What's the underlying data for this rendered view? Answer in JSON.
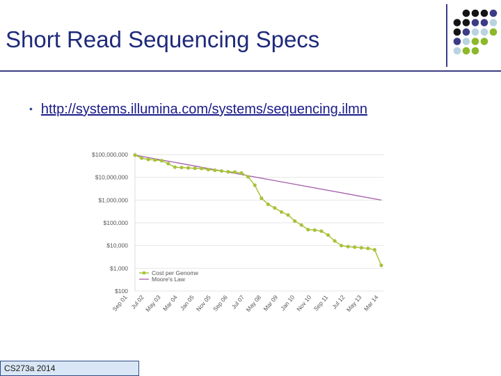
{
  "slide": {
    "title": "Short Read Sequencing Specs",
    "bullet_link": "http://systems.illumina.com/systems/sequencing.ilmn",
    "footer": "CS273a 2014"
  },
  "colors": {
    "title": "#1f2a7a",
    "rule": "#3b3b86",
    "dot_black": "#141414",
    "dot_navy": "#3b3b86",
    "dot_lightblue": "#b9d3e0",
    "dot_green": "#8cb82a",
    "cost_series": "#a8c23a",
    "moore_series": "#a35ca8"
  },
  "chart_data": {
    "type": "line",
    "yscale": "log",
    "yticks": [
      "$100,000,000",
      "$10,000,000",
      "$1,000,000",
      "$100,000",
      "$10,000",
      "$1,000",
      "$100"
    ],
    "ylim": [
      100,
      100000000
    ],
    "xticks": [
      "Sep 01",
      "Jul 02",
      "May 03",
      "Mar 04",
      "Jan 05",
      "Nov 05",
      "Sep 06",
      "Jul 07",
      "May 08",
      "Mar 09",
      "Jan 10",
      "Nov 10",
      "Sep 11",
      "Jul 12",
      "May 13",
      "Mar 14"
    ],
    "legend": "bottom-left",
    "series": [
      {
        "name": "Cost per Genome",
        "color": "#a8c23a",
        "points": [
          [
            0,
            95000000
          ],
          [
            1,
            70000000
          ],
          [
            2,
            61000000
          ],
          [
            3,
            58000000
          ],
          [
            4,
            54000000
          ],
          [
            5,
            40000000
          ],
          [
            6,
            28000000
          ],
          [
            7,
            27000000
          ],
          [
            8,
            26000000
          ],
          [
            9,
            25000000
          ],
          [
            10,
            24500000
          ],
          [
            11,
            22000000
          ],
          [
            12,
            20500000
          ],
          [
            13,
            19000000
          ],
          [
            14,
            17500000
          ],
          [
            15,
            17000000
          ],
          [
            16,
            15500000
          ],
          [
            17,
            10500000
          ],
          [
            18,
            4500000
          ],
          [
            19,
            1200000
          ],
          [
            20,
            650000
          ],
          [
            21,
            450000
          ],
          [
            22,
            300000
          ],
          [
            23,
            220000
          ],
          [
            24,
            120000
          ],
          [
            25,
            80000
          ],
          [
            26,
            50000
          ],
          [
            27,
            48000
          ],
          [
            28,
            43000
          ],
          [
            29,
            29000
          ],
          [
            30,
            16000
          ],
          [
            31,
            10000
          ],
          [
            32,
            9000
          ],
          [
            33,
            8500
          ],
          [
            34,
            8000
          ],
          [
            35,
            7500
          ],
          [
            36,
            6500
          ],
          [
            37,
            1350
          ]
        ]
      },
      {
        "name": "Moore's Law",
        "color": "#a35ca8",
        "points": [
          [
            0,
            95000000
          ],
          [
            37,
            1000000
          ]
        ]
      }
    ]
  }
}
